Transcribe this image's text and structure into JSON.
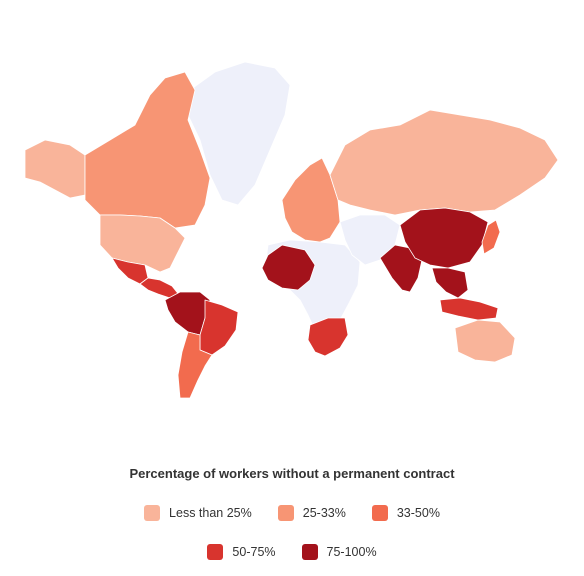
{
  "legend": {
    "title": "Percentage of workers without a permanent contract",
    "items": [
      {
        "label": "Less than 25%",
        "color": "#f9b49a"
      },
      {
        "label": "25-33%",
        "color": "#f79574"
      },
      {
        "label": "33-50%",
        "color": "#f26b4e"
      },
      {
        "label": "50-75%",
        "color": "#d8342e"
      },
      {
        "label": "75-100%",
        "color": "#a3121b"
      }
    ]
  },
  "colors": {
    "no_data": "#eef0fa",
    "less_than_25": "#f9b49a",
    "25_33": "#f79574",
    "33_50": "#f26b4e",
    "50_75": "#d8342e",
    "75_100": "#a3121b"
  },
  "regions": [
    {
      "name": "greenland",
      "category": "no_data"
    },
    {
      "name": "alaska",
      "category": "less_than_25"
    },
    {
      "name": "canada",
      "category": "25_33"
    },
    {
      "name": "usa",
      "category": "less_than_25"
    },
    {
      "name": "mexico",
      "category": "50_75"
    },
    {
      "name": "central-america",
      "category": "50_75"
    },
    {
      "name": "south-america-north",
      "category": "75_100"
    },
    {
      "name": "brazil",
      "category": "50_75"
    },
    {
      "name": "south-america-south",
      "category": "33_50"
    },
    {
      "name": "europe",
      "category": "25_33"
    },
    {
      "name": "russia",
      "category": "less_than_25"
    },
    {
      "name": "africa",
      "category": "no_data"
    },
    {
      "name": "west-africa",
      "category": "75_100"
    },
    {
      "name": "southern-africa",
      "category": "50_75"
    },
    {
      "name": "middle-east",
      "category": "no_data"
    },
    {
      "name": "india",
      "category": "75_100"
    },
    {
      "name": "china",
      "category": "75_100"
    },
    {
      "name": "japan",
      "category": "33_50"
    },
    {
      "name": "southeast-asia",
      "category": "75_100"
    },
    {
      "name": "indonesia",
      "category": "50_75"
    },
    {
      "name": "australia",
      "category": "less_than_25"
    }
  ]
}
